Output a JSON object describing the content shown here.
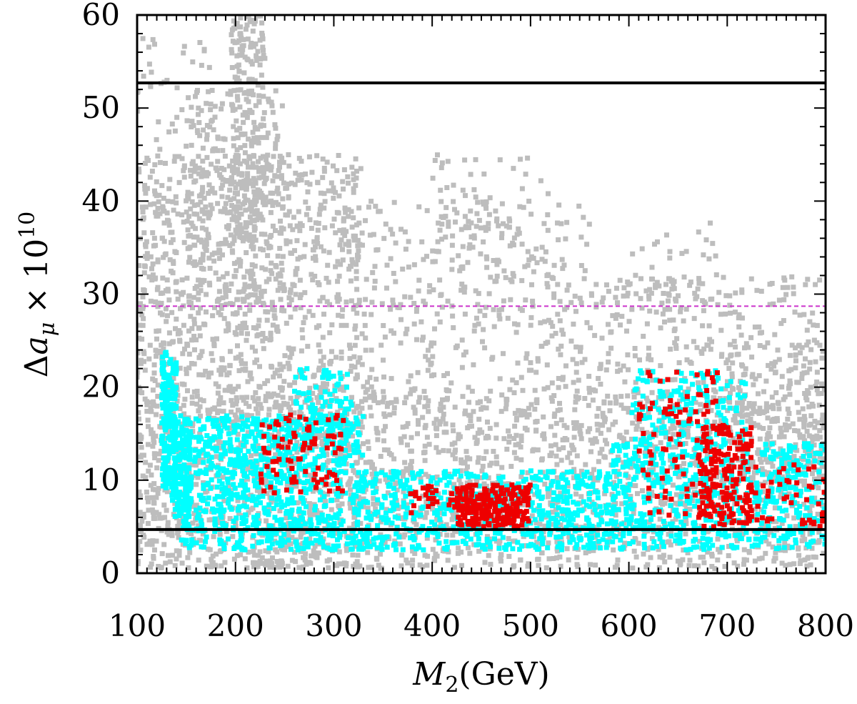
{
  "chart_data": {
    "type": "scatter",
    "title": "",
    "xlabel": {
      "symbol": "M",
      "subscript": "2",
      "unit": "(GeV)"
    },
    "ylabel": {
      "prefix": "Δ",
      "symbol": "a",
      "subscript": "μ",
      "times": "×",
      "base": "10",
      "exponent": "10"
    },
    "xlim": [
      100,
      800
    ],
    "ylim": [
      0,
      60
    ],
    "xticks": [
      100,
      200,
      300,
      400,
      500,
      600,
      700,
      800
    ],
    "yticks": [
      0,
      10,
      20,
      30,
      40,
      50,
      60
    ],
    "grid": false,
    "legend": "none",
    "reference_lines": [
      {
        "y": 52.7,
        "style": "solid",
        "color": "#000000"
      },
      {
        "y": 4.7,
        "style": "solid",
        "color": "#000000"
      },
      {
        "y": 28.7,
        "style": "dashed",
        "color": "#cc33cc"
      }
    ],
    "series": [
      {
        "color": "#bdbdbd",
        "regions": [
          {
            "x": [
              100,
              330
            ],
            "y": [
              0.5,
              45
            ],
            "n": 1500
          },
          {
            "x": [
              195,
              230
            ],
            "y": [
              35,
              60
            ],
            "n": 230
          },
          {
            "x": [
              150,
              250
            ],
            "y": [
              25,
              52
            ],
            "n": 260
          },
          {
            "x": [
              100,
              180
            ],
            "y": [
              40,
              58
            ],
            "n": 60
          },
          {
            "x": [
              330,
              560
            ],
            "y": [
              0.5,
              40
            ],
            "n": 650
          },
          {
            "x": [
              400,
              520
            ],
            "y": [
              30,
              45
            ],
            "n": 80
          },
          {
            "x": [
              560,
              800
            ],
            "y": [
              0.5,
              32
            ],
            "n": 650
          },
          {
            "x": [
              600,
              700
            ],
            "y": [
              28,
              38
            ],
            "n": 40
          },
          {
            "x": [
              700,
              800
            ],
            "y": [
              10,
              25
            ],
            "n": 140
          },
          {
            "x": [
              100,
              800
            ],
            "y": [
              0.5,
              20
            ],
            "n": 1100
          }
        ]
      },
      {
        "color": "#00ffff",
        "regions": [
          {
            "x": [
              125,
              140
            ],
            "y": [
              9,
              24
            ],
            "n": 200
          },
          {
            "x": [
              135,
              155
            ],
            "y": [
              6,
              17
            ],
            "n": 140
          },
          {
            "x": [
              145,
              330
            ],
            "y": [
              2.5,
              17
            ],
            "n": 850
          },
          {
            "x": [
              260,
              320
            ],
            "y": [
              15,
              22
            ],
            "n": 90
          },
          {
            "x": [
              330,
              580
            ],
            "y": [
              2.5,
              11
            ],
            "n": 600
          },
          {
            "x": [
              580,
              800
            ],
            "y": [
              2.5,
              14
            ],
            "n": 600
          },
          {
            "x": [
              600,
              720
            ],
            "y": [
              14,
              22
            ],
            "n": 160
          }
        ]
      },
      {
        "color": "#ee0000",
        "regions": [
          {
            "x": [
              225,
              310
            ],
            "y": [
              8.5,
              17
            ],
            "n": 90
          },
          {
            "x": [
              375,
              440
            ],
            "y": [
              6,
              9.5
            ],
            "n": 30
          },
          {
            "x": [
              425,
              500
            ],
            "y": [
              5,
              9.5
            ],
            "n": 230
          },
          {
            "x": [
              610,
              690
            ],
            "y": [
              6,
              22
            ],
            "n": 90
          },
          {
            "x": [
              670,
              725
            ],
            "y": [
              5,
              16
            ],
            "n": 180
          },
          {
            "x": [
              720,
              800
            ],
            "y": [
              5,
              12
            ],
            "n": 50
          }
        ]
      }
    ]
  }
}
